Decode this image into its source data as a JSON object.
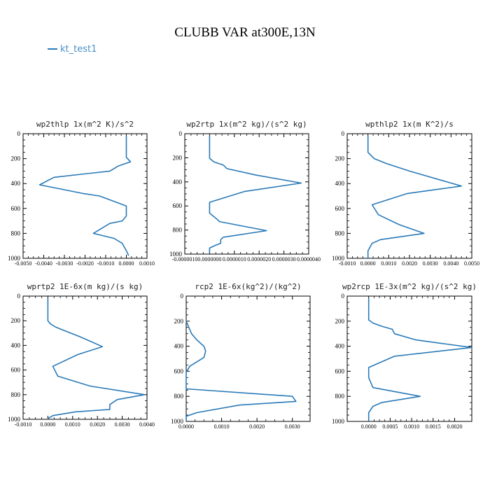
{
  "title": "CLUBB VAR at300E,13N",
  "legend": {
    "series_name": "kt_test1",
    "color": "#2a7ab8"
  },
  "chart_data": [
    {
      "type": "line",
      "title": "wp2thlp  1x(m^2 K)/s^2",
      "xlim": [
        -0.005,
        0.001
      ],
      "ylim": [
        0,
        1000
      ],
      "x_ticks": [
        -0.005,
        -0.004,
        -0.003,
        -0.002,
        -0.001,
        0.0,
        0.001
      ],
      "x_tick_labels": [
        "-0.0050",
        "-0.0040",
        "-0.0030",
        "-0.0020",
        "-0.0010",
        "0.0000",
        "0.0010"
      ],
      "y_ticks": [
        0,
        200,
        400,
        600,
        800,
        1000
      ],
      "y_tick_labels": [
        "0",
        "200",
        "400",
        "600",
        "800",
        "1000"
      ],
      "series": [
        {
          "values": [
            {
              "x": 0.0,
              "y": 20
            },
            {
              "x": 0.0,
              "y": 190
            },
            {
              "x": 0.0002,
              "y": 225
            },
            {
              "x": -0.0004,
              "y": 260
            },
            {
              "x": -0.0008,
              "y": 300
            },
            {
              "x": -0.0035,
              "y": 350
            },
            {
              "x": -0.0042,
              "y": 410
            },
            {
              "x": -0.0021,
              "y": 480
            },
            {
              "x": -0.0013,
              "y": 500
            },
            {
              "x": 0.0,
              "y": 580
            },
            {
              "x": 0.0,
              "y": 660
            },
            {
              "x": -0.0002,
              "y": 700
            },
            {
              "x": -0.0008,
              "y": 720
            },
            {
              "x": -0.0016,
              "y": 800
            },
            {
              "x": -0.0006,
              "y": 840
            },
            {
              "x": -0.0002,
              "y": 880
            },
            {
              "x": 0.0,
              "y": 940
            },
            {
              "x": 0.0001,
              "y": 975
            }
          ]
        }
      ]
    },
    {
      "type": "line",
      "title": "wp2rtp  1x(m^2 kg)/(s^2 kg)",
      "xlim": [
        -1e-06,
        4e-06
      ],
      "ylim": [
        0,
        1000
      ],
      "x_ticks": [
        -1e-06,
        0,
        1e-06,
        2e-06,
        3e-06,
        4e-06
      ],
      "x_tick_labels": [
        "-0.0000010",
        "0.0000000",
        "0.0000010",
        "0.0000020",
        "0.0000030",
        "0.0000040"
      ],
      "y_ticks": [
        0,
        200,
        400,
        600,
        800,
        1000
      ],
      "y_tick_labels": [
        "0",
        "200",
        "400",
        "600",
        "800",
        "1000"
      ],
      "series": [
        {
          "values": [
            {
              "x": 0.0,
              "y": 20
            },
            {
              "x": 0.0,
              "y": 180
            },
            {
              "x": 0.0,
              "y": 205
            },
            {
              "x": 1.8e-07,
              "y": 235
            },
            {
              "x": 5.5e-07,
              "y": 260
            },
            {
              "x": 7e-07,
              "y": 290
            },
            {
              "x": 1.9e-06,
              "y": 345
            },
            {
              "x": 3.7e-06,
              "y": 410
            },
            {
              "x": 1.4e-06,
              "y": 480
            },
            {
              "x": 0.0,
              "y": 570
            },
            {
              "x": 0.0,
              "y": 660
            },
            {
              "x": 3e-07,
              "y": 710
            },
            {
              "x": 4e-07,
              "y": 730
            },
            {
              "x": 2.3e-06,
              "y": 805
            },
            {
              "x": 5.5e-07,
              "y": 860
            },
            {
              "x": 4.5e-07,
              "y": 880
            },
            {
              "x": 4.5e-07,
              "y": 910
            },
            {
              "x": 2e-07,
              "y": 930
            },
            {
              "x": 0.0,
              "y": 950
            },
            {
              "x": 0.0,
              "y": 990
            }
          ]
        }
      ]
    },
    {
      "type": "line",
      "title": "wpthlp2  1x(m K^2)/s",
      "xlim": [
        -0.001,
        0.005
      ],
      "ylim": [
        0,
        1000
      ],
      "x_ticks": [
        -0.001,
        0.0,
        0.001,
        0.002,
        0.003,
        0.004,
        0.005
      ],
      "x_tick_labels": [
        "-0.0010",
        "0.0000",
        "0.0010",
        "0.0020",
        "0.0030",
        "0.0040",
        "0.0050"
      ],
      "y_ticks": [
        0,
        200,
        400,
        600,
        800,
        1000
      ],
      "y_tick_labels": [
        "0",
        "200",
        "400",
        "600",
        "800",
        "1000"
      ],
      "series": [
        {
          "values": [
            {
              "x": 0.0,
              "y": 20
            },
            {
              "x": 0.0,
              "y": 150
            },
            {
              "x": 0.0003,
              "y": 200
            },
            {
              "x": 0.0009,
              "y": 240
            },
            {
              "x": 0.002,
              "y": 300
            },
            {
              "x": 0.0045,
              "y": 420
            },
            {
              "x": 0.0019,
              "y": 480
            },
            {
              "x": 0.0002,
              "y": 570
            },
            {
              "x": 0.0005,
              "y": 650
            },
            {
              "x": 0.0015,
              "y": 730
            },
            {
              "x": 0.0027,
              "y": 800
            },
            {
              "x": 0.0006,
              "y": 850
            },
            {
              "x": 0.0002,
              "y": 880
            },
            {
              "x": 0.0,
              "y": 940
            },
            {
              "x": 0.0,
              "y": 995
            }
          ]
        }
      ]
    },
    {
      "type": "line",
      "title": "wprtp2  1E-6x(m kg)/(s kg)",
      "xlim": [
        -0.001,
        0.004
      ],
      "ylim": [
        0,
        1000
      ],
      "x_ticks": [
        -0.001,
        0.0,
        0.001,
        0.002,
        0.003,
        0.004
      ],
      "x_tick_labels": [
        "-0.0010",
        "0.0000",
        "0.0010",
        "0.0020",
        "0.0030",
        "0.0040"
      ],
      "y_ticks": [
        0,
        200,
        400,
        600,
        800,
        1000
      ],
      "y_tick_labels": [
        "0",
        "200",
        "400",
        "600",
        "800",
        "1000"
      ],
      "series": [
        {
          "values": [
            {
              "x": 0.0,
              "y": 20
            },
            {
              "x": 0.0,
              "y": 200
            },
            {
              "x": 0.0001,
              "y": 225
            },
            {
              "x": 0.0003,
              "y": 250
            },
            {
              "x": 0.0006,
              "y": 275
            },
            {
              "x": 0.0013,
              "y": 330
            },
            {
              "x": 0.0022,
              "y": 410
            },
            {
              "x": 0.0012,
              "y": 475
            },
            {
              "x": 0.0002,
              "y": 570
            },
            {
              "x": 0.0004,
              "y": 650
            },
            {
              "x": 0.0017,
              "y": 730
            },
            {
              "x": 0.0039,
              "y": 800
            },
            {
              "x": 0.0028,
              "y": 840
            },
            {
              "x": 0.0025,
              "y": 880
            },
            {
              "x": 0.0025,
              "y": 920
            },
            {
              "x": 0.0011,
              "y": 940
            },
            {
              "x": 0.0002,
              "y": 970
            },
            {
              "x": 0.0,
              "y": 995
            }
          ]
        }
      ]
    },
    {
      "type": "line",
      "title": "rcp2  1E-6x(kg^2)/(kg^2)",
      "xlim": [
        0,
        0.0035
      ],
      "ylim": [
        0,
        1000
      ],
      "x_ticks": [
        0.0,
        0.001,
        0.002,
        0.003
      ],
      "x_tick_labels": [
        "0.0000",
        "0.0010",
        "0.0020",
        "0.0030"
      ],
      "y_ticks": [
        0,
        200,
        400,
        600,
        800,
        1000
      ],
      "y_tick_labels": [
        "0",
        "200",
        "400",
        "600",
        "800",
        "1000"
      ],
      "series": [
        {
          "values": [
            {
              "x": 0.0,
              "y": 200
            },
            {
              "x": 0.00015,
              "y": 300
            },
            {
              "x": 0.0003,
              "y": 350
            },
            {
              "x": 0.0005,
              "y": 400
            },
            {
              "x": 0.00055,
              "y": 440
            },
            {
              "x": 0.0005,
              "y": 490
            },
            {
              "x": 0.0001,
              "y": 560
            },
            {
              "x": 0.0,
              "y": 610
            },
            {
              "x": 0.0,
              "y": 740
            },
            {
              "x": 0.003,
              "y": 800
            },
            {
              "x": 0.0031,
              "y": 840
            },
            {
              "x": 0.0015,
              "y": 870
            },
            {
              "x": 0.0003,
              "y": 930
            },
            {
              "x": 0.0,
              "y": 960
            },
            {
              "x": 0.0,
              "y": 990
            }
          ]
        }
      ]
    },
    {
      "type": "line",
      "title": "wp2rcp  1E-3x(m^2 kg)/(s^2 kg)",
      "xlim": [
        -0.0005,
        0.0024
      ],
      "ylim": [
        0,
        1000
      ],
      "x_ticks": [
        0.0,
        0.0005,
        0.001,
        0.0015,
        0.002
      ],
      "x_tick_labels": [
        "0.0000",
        "0.0005",
        "0.0010",
        "0.0015",
        "0.0020"
      ],
      "y_ticks": [
        0,
        200,
        400,
        600,
        800,
        1000
      ],
      "y_tick_labels": [
        "0",
        "200",
        "400",
        "600",
        "800",
        "1000"
      ],
      "series": [
        {
          "values": [
            {
              "x": 0.0,
              "y": 20
            },
            {
              "x": 0.0,
              "y": 190
            },
            {
              "x": 0.0001,
              "y": 215
            },
            {
              "x": 0.0003,
              "y": 240
            },
            {
              "x": 0.00055,
              "y": 265
            },
            {
              "x": 0.0006,
              "y": 300
            },
            {
              "x": 0.0011,
              "y": 350
            },
            {
              "x": 0.0024,
              "y": 410
            },
            {
              "x": 0.0006,
              "y": 480
            },
            {
              "x": 0.0,
              "y": 570
            },
            {
              "x": 0.0,
              "y": 650
            },
            {
              "x": 0.0001,
              "y": 730
            },
            {
              "x": 0.0012,
              "y": 800
            },
            {
              "x": 0.0003,
              "y": 850
            },
            {
              "x": 0.0001,
              "y": 880
            },
            {
              "x": 0.0,
              "y": 930
            },
            {
              "x": 0.0,
              "y": 995
            }
          ]
        }
      ]
    }
  ]
}
